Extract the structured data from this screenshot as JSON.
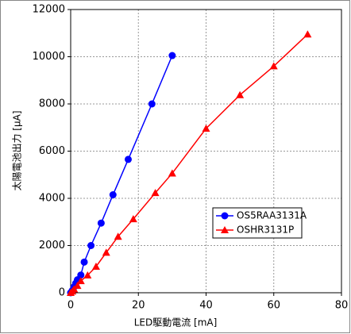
{
  "chart_data": {
    "type": "line",
    "xlabel": "LED駆動電流 [mA]",
    "ylabel": "太陽電池出力 [μA]",
    "xlim": [
      0,
      80
    ],
    "xticks": [
      0,
      20,
      40,
      60,
      80
    ],
    "ylim": [
      0,
      12000
    ],
    "yticks": [
      0,
      2000,
      4000,
      6000,
      8000,
      10000,
      12000
    ],
    "grid": true,
    "legend": "lower right",
    "series": [
      {
        "name": "OS5RAA3131A",
        "color": "#0000ff",
        "marker": "circle",
        "x": [
          0,
          0.5,
          1,
          1.5,
          2,
          3,
          4,
          6,
          9,
          12.5,
          17,
          24,
          30
        ],
        "values": [
          0,
          100,
          250,
          400,
          550,
          750,
          1300,
          2000,
          2950,
          4150,
          5650,
          8000,
          10050
        ]
      },
      {
        "name": "OSHR3131P",
        "color": "#ff0000",
        "marker": "triangle",
        "x": [
          0,
          0.5,
          1,
          2,
          3,
          5,
          7.5,
          10.5,
          14,
          18.5,
          25,
          30,
          40,
          50,
          60,
          70
        ],
        "values": [
          0,
          60,
          150,
          300,
          500,
          740,
          1110,
          1700,
          2380,
          3120,
          4230,
          5060,
          6960,
          8380,
          9600,
          10950
        ]
      }
    ]
  }
}
